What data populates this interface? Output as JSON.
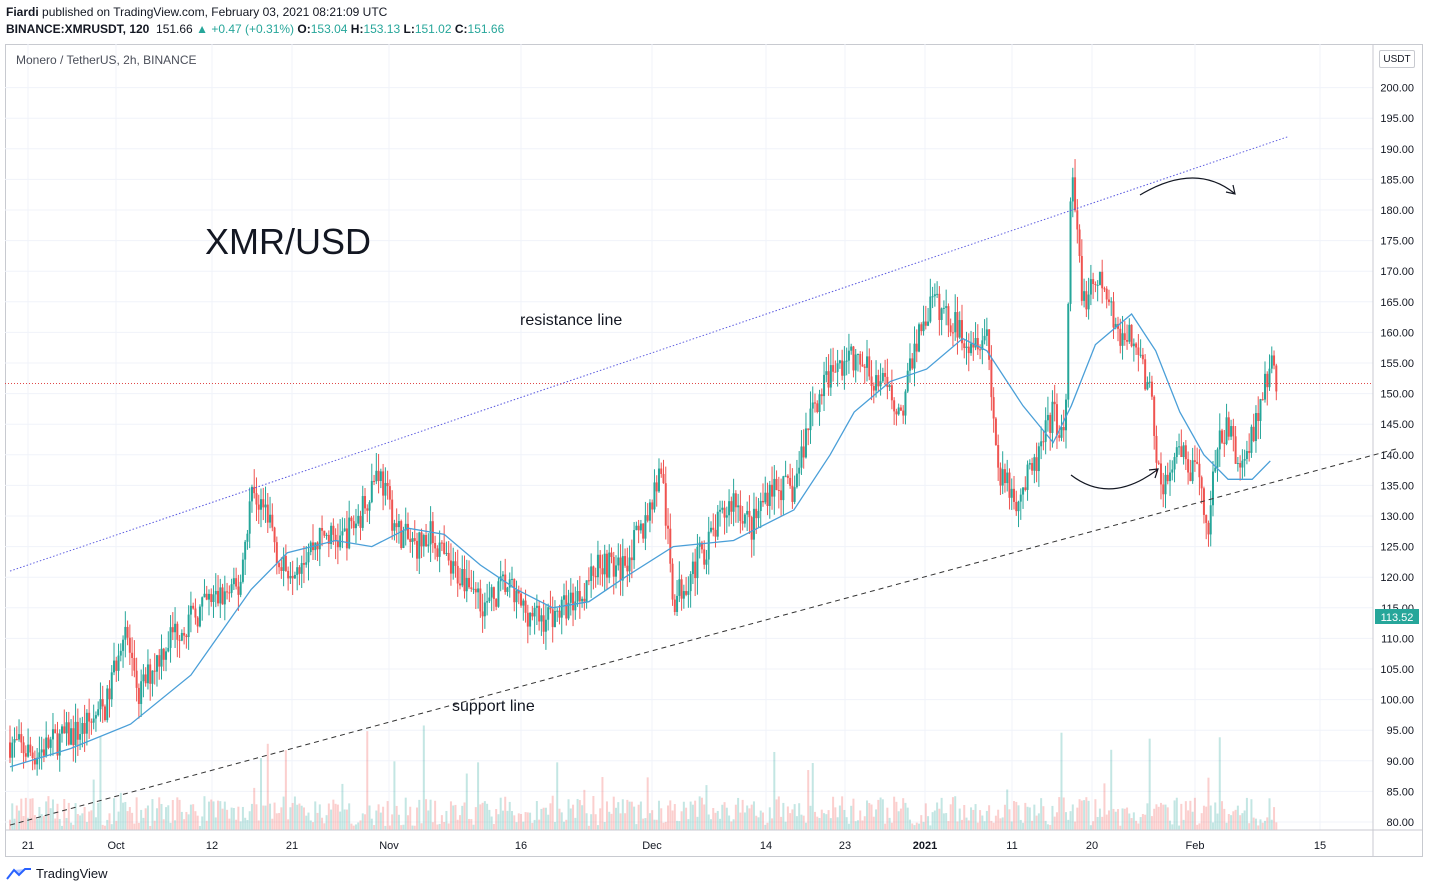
{
  "header": {
    "author": "Fiardi",
    "published_text": "published on TradingView.com, February 03, 2021 08:21:09 UTC",
    "symbol_interval": "BINANCE:XMRUSDT, 120",
    "last": "151.66",
    "change": "+0.47 (+0.31%)",
    "o_label": "O:",
    "o_value": "153.04",
    "h_label": "H:",
    "h_value": "153.13",
    "l_label": "L:",
    "l_value": "151.02",
    "c_label": "C:",
    "c_value": "151.66"
  },
  "legend": "Monero / TetherUS, 2h, BINANCE",
  "unit_button": "USDT",
  "footer": {
    "brand": "TradingView"
  },
  "colors": {
    "up": "#26a69a",
    "down": "#ef5350",
    "ma": "#4a9fd8",
    "resistance": "#5a5ae0",
    "support": "#333333",
    "last_price": "#e04848",
    "badge": "#26a69a"
  },
  "chart_data": {
    "type": "candlestick",
    "title": "XMR/USD",
    "y_axis": {
      "range": [
        78.5,
        206
      ],
      "ticks": [
        "80.00",
        "85.00",
        "90.00",
        "95.00",
        "100.00",
        "105.00",
        "110.00",
        "115.00",
        "120.00",
        "125.00",
        "130.00",
        "135.00",
        "140.00",
        "145.00",
        "150.00",
        "155.00",
        "160.00",
        "165.00",
        "170.00",
        "175.00",
        "180.00",
        "185.00",
        "190.00",
        "195.00",
        "200.00"
      ]
    },
    "x_axis": {
      "labels": [
        {
          "label": "21",
          "bold": false
        },
        {
          "label": "Oct",
          "bold": false
        },
        {
          "label": "12",
          "bold": false
        },
        {
          "label": "21",
          "bold": false
        },
        {
          "label": "Nov",
          "bold": false
        },
        {
          "label": "16",
          "bold": false
        },
        {
          "label": "Dec",
          "bold": false
        },
        {
          "label": "14",
          "bold": false
        },
        {
          "label": "23",
          "bold": false
        },
        {
          "label": "2021",
          "bold": true
        },
        {
          "label": "11",
          "bold": false
        },
        {
          "label": "20",
          "bold": false
        },
        {
          "label": "Feb",
          "bold": false
        },
        {
          "label": "15",
          "bold": false
        }
      ]
    },
    "price_badge": "113.52",
    "last_price_line": 151.66,
    "price_path": [
      [
        0,
        93
      ],
      [
        0.02,
        91
      ],
      [
        0.035,
        93
      ],
      [
        0.06,
        95
      ],
      [
        0.08,
        99
      ],
      [
        0.095,
        113
      ],
      [
        0.105,
        100
      ],
      [
        0.12,
        106
      ],
      [
        0.135,
        111
      ],
      [
        0.15,
        113
      ],
      [
        0.165,
        116
      ],
      [
        0.19,
        118
      ],
      [
        0.2,
        134
      ],
      [
        0.215,
        130
      ],
      [
        0.225,
        121
      ],
      [
        0.24,
        123
      ],
      [
        0.26,
        127
      ],
      [
        0.275,
        126
      ],
      [
        0.29,
        130
      ],
      [
        0.305,
        138
      ],
      [
        0.32,
        128
      ],
      [
        0.335,
        125
      ],
      [
        0.35,
        127
      ],
      [
        0.365,
        121
      ],
      [
        0.38,
        120
      ],
      [
        0.395,
        115
      ],
      [
        0.41,
        119
      ],
      [
        0.425,
        115
      ],
      [
        0.44,
        113
      ],
      [
        0.46,
        115
      ],
      [
        0.475,
        118
      ],
      [
        0.49,
        123
      ],
      [
        0.505,
        121
      ],
      [
        0.525,
        128
      ],
      [
        0.54,
        138
      ],
      [
        0.55,
        116
      ],
      [
        0.565,
        121
      ],
      [
        0.58,
        126
      ],
      [
        0.6,
        133
      ],
      [
        0.615,
        128
      ],
      [
        0.63,
        135
      ],
      [
        0.65,
        134
      ],
      [
        0.665,
        148
      ],
      [
        0.68,
        153
      ],
      [
        0.695,
        156
      ],
      [
        0.71,
        154
      ],
      [
        0.725,
        151
      ],
      [
        0.74,
        147
      ],
      [
        0.75,
        158
      ],
      [
        0.765,
        165
      ],
      [
        0.78,
        162
      ],
      [
        0.795,
        159
      ],
      [
        0.81,
        160
      ],
      [
        0.82,
        136
      ],
      [
        0.835,
        133
      ],
      [
        0.85,
        138
      ],
      [
        0.865,
        147
      ],
      [
        0.875,
        142
      ],
      [
        0.88,
        186
      ],
      [
        0.89,
        165
      ],
      [
        0.905,
        168
      ],
      [
        0.92,
        160
      ],
      [
        0.935,
        158
      ],
      [
        0.945,
        150
      ],
      [
        0.955,
        134
      ],
      [
        0.97,
        140
      ],
      [
        0.985,
        136
      ],
      [
        0.993,
        128
      ],
      [
        1.0,
        140
      ],
      [
        1.01,
        145
      ],
      [
        1.02,
        137
      ],
      [
        1.035,
        147
      ],
      [
        1.045,
        155
      ],
      [
        1.05,
        152
      ]
    ],
    "moving_average": [
      [
        0,
        89
      ],
      [
        0.05,
        92
      ],
      [
        0.1,
        96
      ],
      [
        0.15,
        104
      ],
      [
        0.2,
        118
      ],
      [
        0.23,
        124
      ],
      [
        0.27,
        126
      ],
      [
        0.3,
        125
      ],
      [
        0.33,
        128
      ],
      [
        0.36,
        127
      ],
      [
        0.39,
        122
      ],
      [
        0.42,
        118
      ],
      [
        0.45,
        115
      ],
      [
        0.48,
        116
      ],
      [
        0.51,
        120
      ],
      [
        0.55,
        125
      ],
      [
        0.6,
        126
      ],
      [
        0.62,
        128
      ],
      [
        0.65,
        131
      ],
      [
        0.68,
        140
      ],
      [
        0.7,
        147
      ],
      [
        0.73,
        152
      ],
      [
        0.76,
        154
      ],
      [
        0.79,
        159
      ],
      [
        0.81,
        157
      ],
      [
        0.84,
        148
      ],
      [
        0.865,
        142
      ],
      [
        0.88,
        148
      ],
      [
        0.9,
        158
      ],
      [
        0.93,
        163
      ],
      [
        0.95,
        157
      ],
      [
        0.97,
        147
      ],
      [
        0.99,
        140
      ],
      [
        1.01,
        136
      ],
      [
        1.03,
        136
      ],
      [
        1.045,
        139
      ]
    ],
    "annotations": {
      "resistance_label": "resistance line",
      "support_label": "support line",
      "resistance_line": [
        [
          0,
          121
        ],
        [
          1.06,
          192
        ]
      ],
      "support_line": [
        [
          0,
          79.5
        ],
        [
          1.15,
          141
        ]
      ]
    }
  }
}
